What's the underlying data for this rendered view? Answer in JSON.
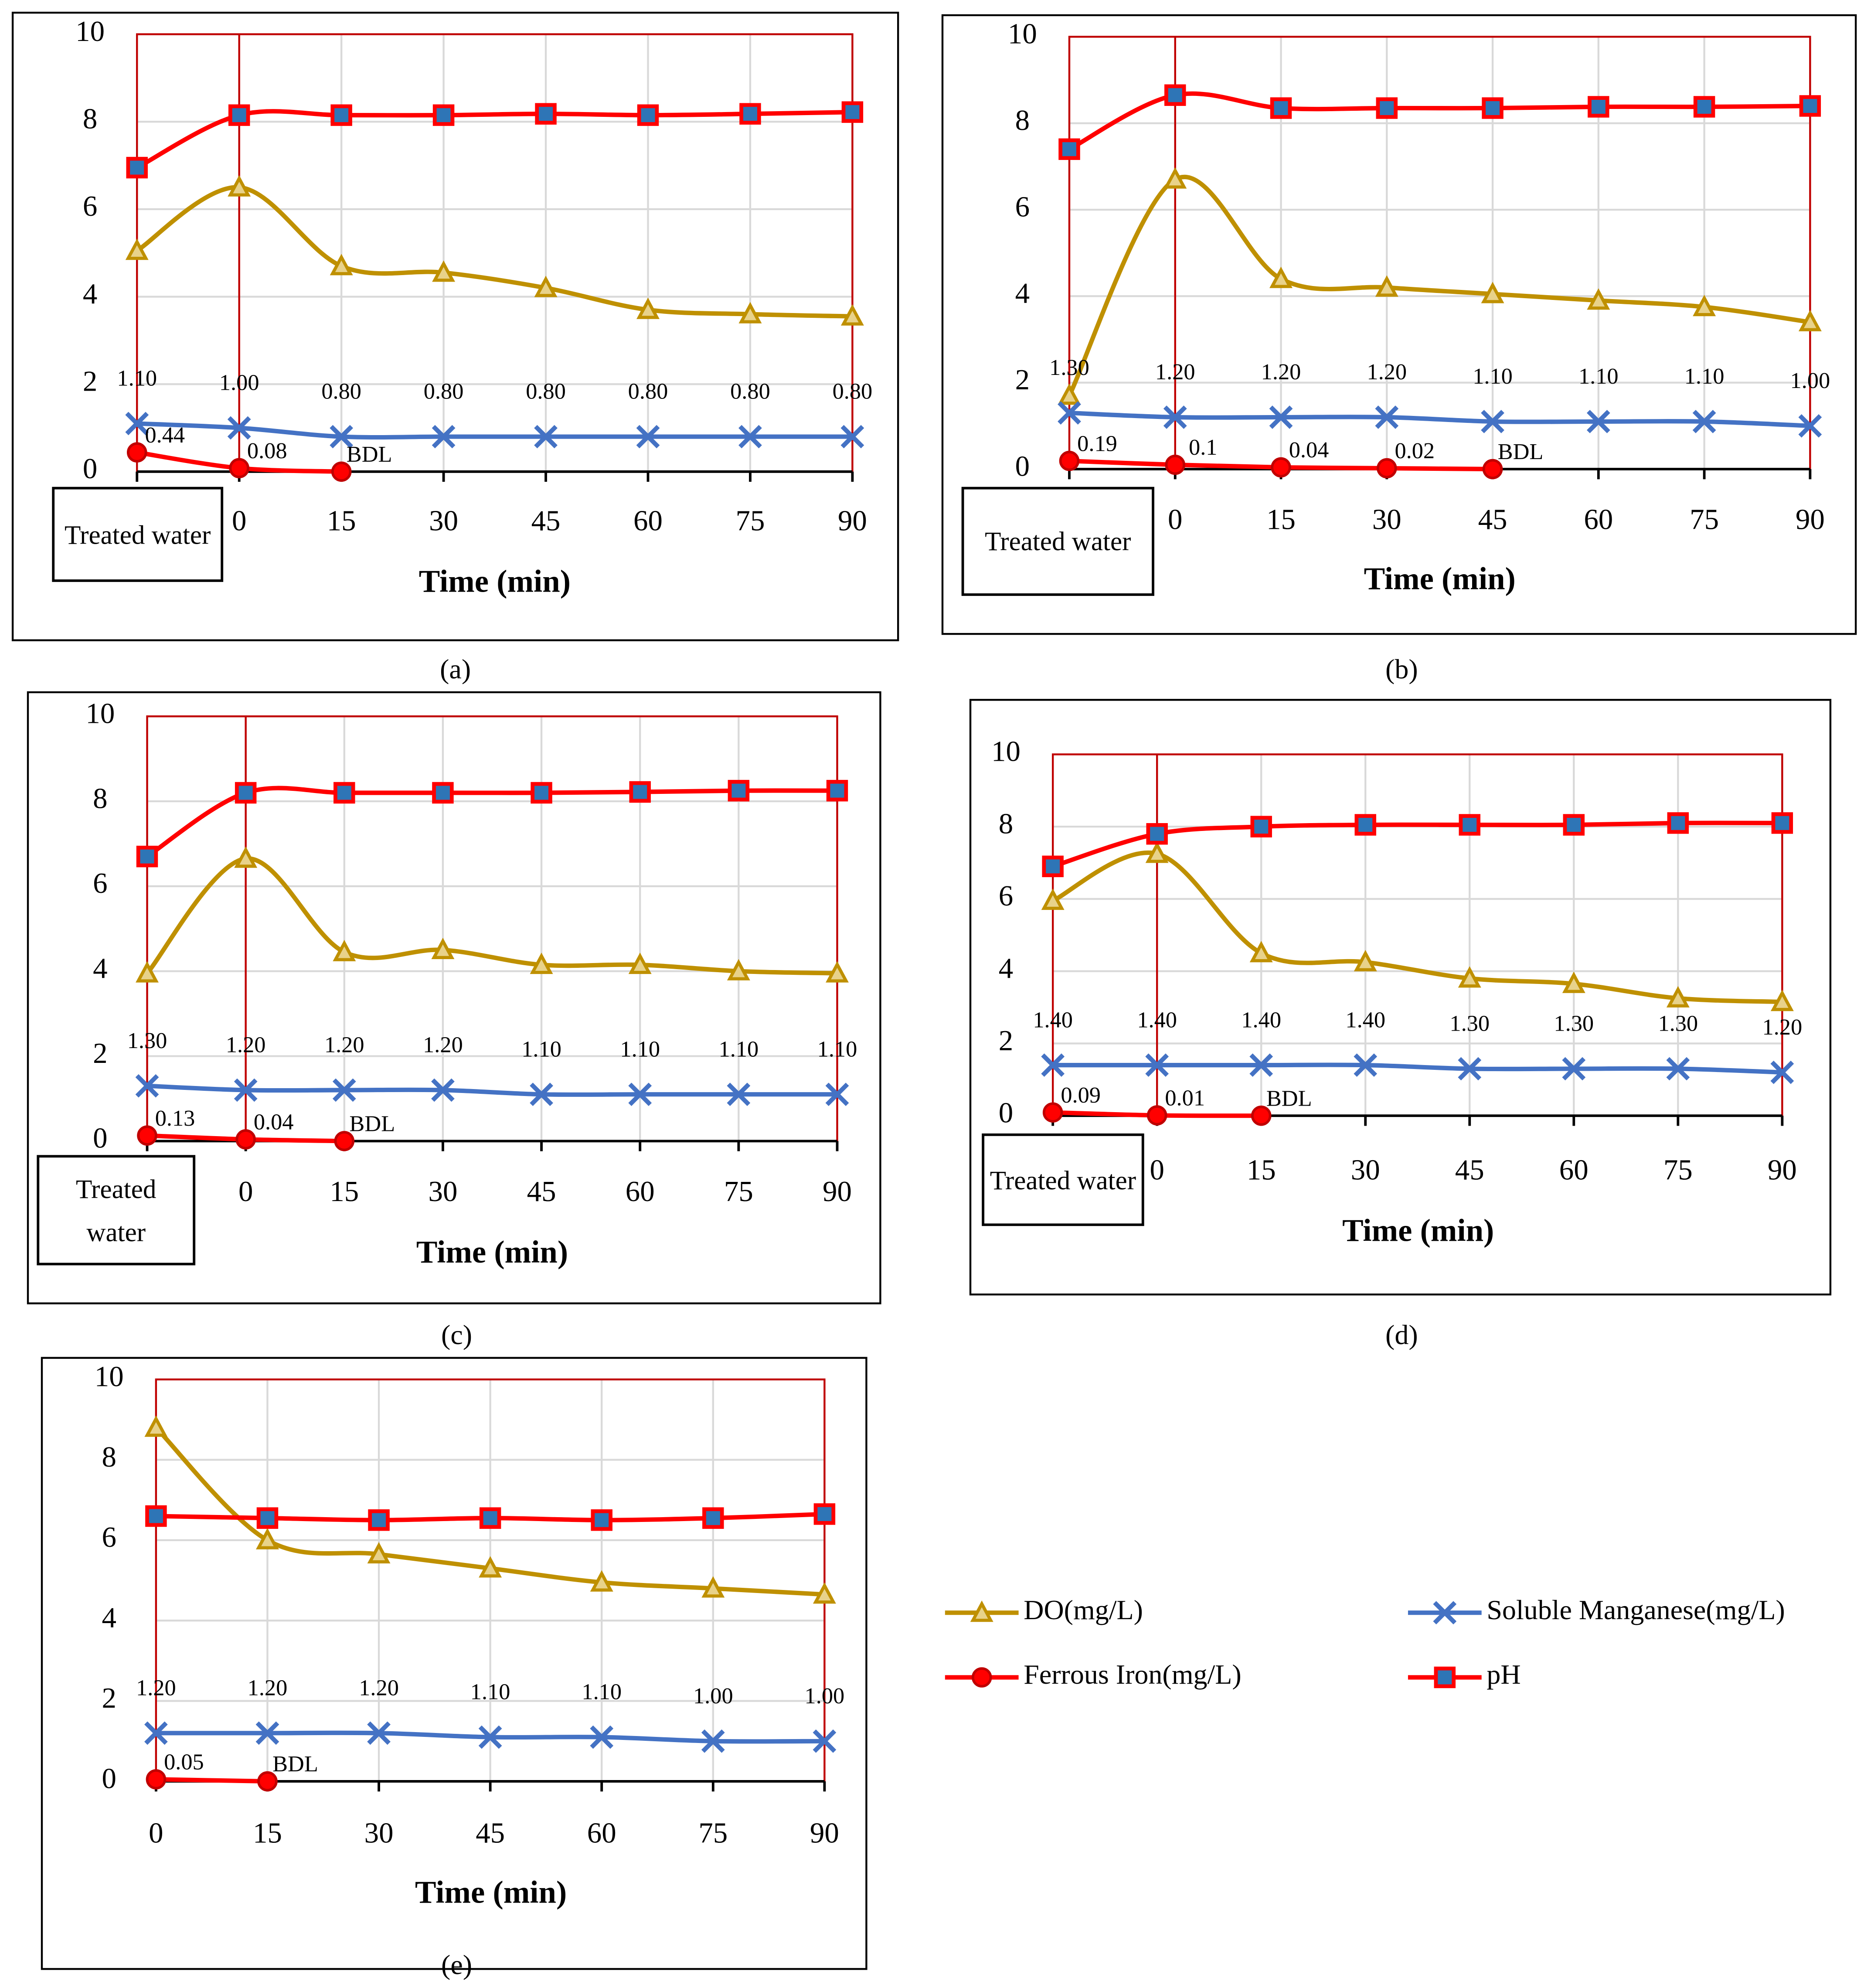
{
  "chart_data": [
    {
      "type": "line",
      "panel_label": "(a)",
      "x_label": "Time (min)",
      "boxed_first_category": true,
      "categories": [
        "Treated water",
        "0",
        "15",
        "30",
        "45",
        "60",
        "75",
        "90"
      ],
      "ylim": [
        0,
        10
      ],
      "yticks": [
        0,
        2,
        4,
        6,
        8,
        10
      ],
      "grid": true,
      "series": [
        {
          "color": "#bf9000",
          "marker": "triangle",
          "values": [
            5.05,
            6.5,
            4.7,
            4.55,
            4.2,
            3.7,
            3.6,
            3.55
          ]
        },
        {
          "color": "#4472c4",
          "marker": "x",
          "values": [
            1.1,
            1.0,
            0.8,
            0.8,
            0.8,
            0.8,
            0.8,
            0.8
          ],
          "value_labels": [
            "1.10",
            "1.00",
            "0.80",
            "0.80",
            "0.80",
            "0.80",
            "0.80",
            "0.80"
          ]
        },
        {
          "color": "#ff0000",
          "marker": "circle",
          "values": [
            0.44,
            0.08,
            0,
            null,
            null,
            null,
            null,
            null
          ],
          "value_labels": [
            "0.44",
            "0.08",
            "BDL",
            null,
            null,
            null,
            null,
            null
          ]
        },
        {
          "color": "#ff0000",
          "marker": "square",
          "values": [
            6.95,
            8.15,
            8.15,
            8.15,
            8.18,
            8.15,
            8.18,
            8.22
          ]
        }
      ]
    },
    {
      "type": "line",
      "panel_label": "(b)",
      "x_label": "Time (min)",
      "boxed_first_category": true,
      "categories": [
        "Treated water",
        "0",
        "15",
        "30",
        "45",
        "60",
        "75",
        "90"
      ],
      "ylim": [
        0,
        10
      ],
      "yticks": [
        0,
        2,
        4,
        6,
        8,
        10
      ],
      "grid": true,
      "series": [
        {
          "color": "#bf9000",
          "marker": "triangle",
          "values": [
            1.7,
            6.7,
            4.4,
            4.2,
            4.05,
            3.9,
            3.75,
            3.4
          ]
        },
        {
          "color": "#4472c4",
          "marker": "x",
          "values": [
            1.3,
            1.2,
            1.2,
            1.2,
            1.1,
            1.1,
            1.1,
            1.0
          ],
          "value_labels": [
            "1.30",
            "1.20",
            "1.20",
            "1.20",
            "1.10",
            "1.10",
            "1.10",
            "1.00"
          ]
        },
        {
          "color": "#ff0000",
          "marker": "circle",
          "values": [
            0.19,
            0.1,
            0.04,
            0.02,
            0,
            null,
            null,
            null
          ],
          "value_labels": [
            "0.19",
            "0.1",
            "0.04",
            "0.02",
            "BDL",
            null,
            null,
            null
          ]
        },
        {
          "color": "#ff0000",
          "marker": "square",
          "values": [
            7.4,
            8.65,
            8.35,
            8.35,
            8.35,
            8.38,
            8.38,
            8.4
          ]
        }
      ]
    },
    {
      "type": "line",
      "panel_label": "(c)",
      "x_label": "Time (min)",
      "boxed_first_category": true,
      "categories": [
        "Treated water",
        "0",
        "15",
        "30",
        "45",
        "60",
        "75",
        "90"
      ],
      "ylim": [
        0,
        10
      ],
      "yticks": [
        0,
        2,
        4,
        6,
        8,
        10
      ],
      "grid": true,
      "series": [
        {
          "color": "#bf9000",
          "marker": "triangle",
          "values": [
            3.95,
            6.65,
            4.45,
            4.5,
            4.15,
            4.15,
            4.0,
            3.95
          ]
        },
        {
          "color": "#4472c4",
          "marker": "x",
          "values": [
            1.3,
            1.2,
            1.2,
            1.2,
            1.1,
            1.1,
            1.1,
            1.1
          ],
          "value_labels": [
            "1.30",
            "1.20",
            "1.20",
            "1.20",
            "1.10",
            "1.10",
            "1.10",
            "1.10"
          ]
        },
        {
          "color": "#ff0000",
          "marker": "circle",
          "values": [
            0.13,
            0.04,
            0,
            null,
            null,
            null,
            null,
            null
          ],
          "value_labels": [
            "0.13",
            "0.04",
            "BDL",
            null,
            null,
            null,
            null,
            null
          ]
        },
        {
          "color": "#ff0000",
          "marker": "square",
          "values": [
            6.7,
            8.2,
            8.2,
            8.2,
            8.2,
            8.22,
            8.25,
            8.25
          ]
        }
      ]
    },
    {
      "type": "line",
      "panel_label": "(d)",
      "x_label": "Time (min)",
      "boxed_first_category": true,
      "categories": [
        "Treated water",
        "0",
        "15",
        "30",
        "45",
        "60",
        "75",
        "90"
      ],
      "ylim": [
        0,
        10
      ],
      "yticks": [
        0,
        2,
        4,
        6,
        8,
        10
      ],
      "grid": true,
      "series": [
        {
          "color": "#bf9000",
          "marker": "triangle",
          "values": [
            5.95,
            7.25,
            4.5,
            4.25,
            3.8,
            3.65,
            3.25,
            3.15
          ]
        },
        {
          "color": "#4472c4",
          "marker": "x",
          "values": [
            1.4,
            1.4,
            1.4,
            1.4,
            1.3,
            1.3,
            1.3,
            1.2
          ],
          "value_labels": [
            "1.40",
            "1.40",
            "1.40",
            "1.40",
            "1.30",
            "1.30",
            "1.30",
            "1.20"
          ]
        },
        {
          "color": "#ff0000",
          "marker": "circle",
          "values": [
            0.09,
            0.01,
            0,
            null,
            null,
            null,
            null,
            null
          ],
          "value_labels": [
            "0.09",
            "0.01",
            "BDL",
            null,
            null,
            null,
            null,
            null
          ]
        },
        {
          "color": "#ff0000",
          "marker": "square",
          "values": [
            6.9,
            7.8,
            8.0,
            8.05,
            8.05,
            8.05,
            8.1,
            8.1
          ]
        }
      ]
    },
    {
      "type": "line",
      "panel_label": "(e)",
      "x_label": "Time (min)",
      "boxed_first_category": false,
      "categories": [
        "0",
        "15",
        "30",
        "45",
        "60",
        "75",
        "90"
      ],
      "ylim": [
        0,
        10
      ],
      "yticks": [
        0,
        2,
        4,
        6,
        8,
        10
      ],
      "grid": true,
      "series": [
        {
          "name": "DO(mg/L)",
          "color": "#bf9000",
          "marker": "triangle",
          "values": [
            8.8,
            6.0,
            5.65,
            5.3,
            4.95,
            4.8,
            4.65
          ]
        },
        {
          "name": "Soluble Manganese(mg/L)",
          "color": "#4472c4",
          "marker": "x",
          "values": [
            1.2,
            1.2,
            1.2,
            1.1,
            1.1,
            1.0,
            1.0
          ],
          "value_labels": [
            "1.20",
            "1.20",
            "1.20",
            "1.10",
            "1.10",
            "1.00",
            "1.00"
          ]
        },
        {
          "name": "Ferrous Iron(mg/L)",
          "color": "#ff0000",
          "marker": "circle",
          "values": [
            0.05,
            0,
            null,
            null,
            null,
            null,
            null
          ],
          "value_labels": [
            "0.05",
            "BDL",
            null,
            null,
            null,
            null,
            null
          ]
        },
        {
          "name": "pH",
          "color": "#ff0000",
          "marker": "square",
          "values": [
            6.6,
            6.55,
            6.5,
            6.55,
            6.5,
            6.55,
            6.65
          ]
        }
      ]
    }
  ]
}
